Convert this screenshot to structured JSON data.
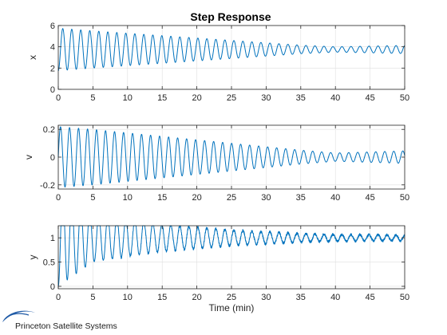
{
  "figure": {
    "title": "Step Response",
    "line_color": "#0072BD",
    "background": "#ffffff"
  },
  "logo": {
    "text": "Princeton Satellite Systems",
    "color": "#1f5aa6"
  },
  "chart_data": [
    {
      "type": "line",
      "title": "Step Response",
      "xlabel": "",
      "ylabel": "x",
      "xlim": [
        0,
        50
      ],
      "ylim": [
        0,
        6
      ],
      "xticks": [
        0,
        5,
        10,
        15,
        20,
        25,
        30,
        35,
        40,
        45,
        50
      ],
      "yticks": [
        0,
        2,
        4,
        6
      ],
      "xtick_labels": [
        "0",
        "5",
        "10",
        "15",
        "20",
        "25",
        "30",
        "35",
        "40",
        "45",
        "50"
      ],
      "ytick_labels": [
        "0",
        "2",
        "4",
        "6"
      ],
      "grid": true,
      "series": [
        {
          "signal": "oscillation",
          "offset": 3.75,
          "initial_amplitude": 2.0,
          "amplitude_profile": [
            [
              0,
              2.0
            ],
            [
              5,
              1.75
            ],
            [
              15,
              1.3
            ],
            [
              25,
              0.85
            ],
            [
              35,
              0.4
            ],
            [
              40,
              0.25
            ],
            [
              50,
              0.38
            ]
          ],
          "period": 1.3,
          "phase": "start_at_minimum",
          "noise": 0,
          "color": "#0072BD"
        }
      ]
    },
    {
      "type": "line",
      "xlabel": "",
      "ylabel": "v",
      "xlim": [
        0,
        50
      ],
      "ylim": [
        -0.23,
        0.23
      ],
      "xticks": [
        0,
        5,
        10,
        15,
        20,
        25,
        30,
        35,
        40,
        45,
        50
      ],
      "yticks": [
        -0.2,
        0,
        0.2
      ],
      "xtick_labels": [
        "0",
        "5",
        "10",
        "15",
        "20",
        "25",
        "30",
        "35",
        "40",
        "45",
        "50"
      ],
      "ytick_labels": [
        "-0.2",
        "0",
        "0.2"
      ],
      "grid": true,
      "series": [
        {
          "signal": "oscillation",
          "offset": 0,
          "amplitude_profile": [
            [
              0,
              0.22
            ],
            [
              5,
              0.2
            ],
            [
              15,
              0.15
            ],
            [
              25,
              0.1
            ],
            [
              35,
              0.05
            ],
            [
              40,
              0.03
            ],
            [
              50,
              0.045
            ]
          ],
          "period": 1.3,
          "phase": "start_at_zero_rising",
          "noise": 0,
          "color": "#0072BD"
        }
      ]
    },
    {
      "type": "line",
      "xlabel": "Time (min)",
      "ylabel": "y",
      "xlim": [
        0,
        50
      ],
      "ylim": [
        -0.05,
        1.25
      ],
      "xticks": [
        0,
        5,
        10,
        15,
        20,
        25,
        30,
        35,
        40,
        45,
        50
      ],
      "yticks": [
        0,
        0.5,
        1
      ],
      "xtick_labels": [
        "0",
        "5",
        "10",
        "15",
        "20",
        "25",
        "30",
        "35",
        "40",
        "45",
        "50"
      ],
      "ytick_labels": [
        "0",
        "0.5",
        "1"
      ],
      "grid": true,
      "series": [
        {
          "signal": "oscillation",
          "offset": 1.0,
          "amplitude_profile": [
            [
              0,
              1.0
            ],
            [
              2,
              0.8
            ],
            [
              5,
              0.5
            ],
            [
              15,
              0.28
            ],
            [
              25,
              0.16
            ],
            [
              35,
              0.09
            ],
            [
              40,
              0.07
            ],
            [
              50,
              0.06
            ]
          ],
          "period": 1.3,
          "phase": "start_at_minimum",
          "noise": 0.025,
          "color": "#0072BD"
        }
      ]
    }
  ]
}
